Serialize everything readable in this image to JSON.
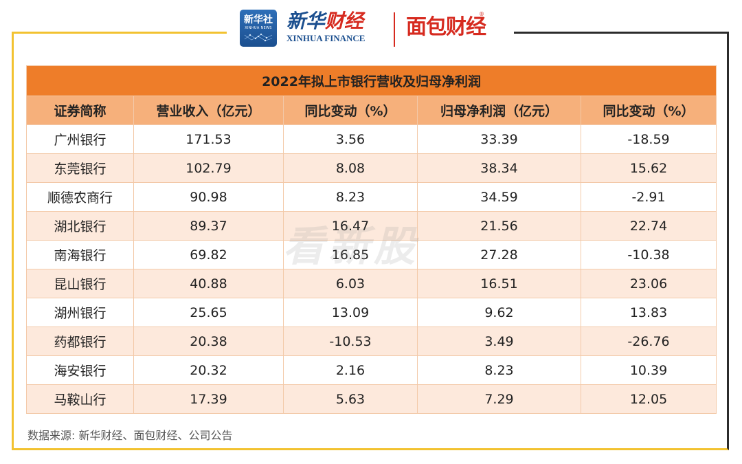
{
  "header": {
    "xinhua_badge_cn": "新华社",
    "xinhua_badge_en": "XINHUA NEWS",
    "xinhua_finance_cn_part1": "新华",
    "xinhua_finance_cn_part2": "财经",
    "xinhua_finance_en": "XINHUA FINANCE",
    "mianbao_logo": "面包财经",
    "registered_mark": "®"
  },
  "colors": {
    "title_bar": "#ee7d29",
    "header_row": "#f6b07b",
    "even_row": "#fde9dc",
    "frame_gold": "#f2c230",
    "frame_dark": "#2b2b2b",
    "brand_red": "#d62a1f",
    "brand_blue": "#1b4f8f"
  },
  "watermark": "看新股",
  "chart_data": {
    "type": "table",
    "title": "2022年拟上市银行营收及归母净利润",
    "columns": [
      "证券简称",
      "营业收入（亿元）",
      "同比变动（%）",
      "归母净利润（亿元）",
      "同比变动（%）"
    ],
    "rows": [
      [
        "广州银行",
        "171.53",
        "3.56",
        "33.39",
        "-18.59"
      ],
      [
        "东莞银行",
        "102.79",
        "8.08",
        "38.34",
        "15.62"
      ],
      [
        "顺德农商行",
        "90.98",
        "8.23",
        "34.59",
        "-2.91"
      ],
      [
        "湖北银行",
        "89.37",
        "16.47",
        "21.56",
        "22.74"
      ],
      [
        "南海银行",
        "69.82",
        "16.85",
        "27.28",
        "-10.38"
      ],
      [
        "昆山银行",
        "40.88",
        "6.03",
        "16.51",
        "23.06"
      ],
      [
        "湖州银行",
        "25.65",
        "13.09",
        "9.62",
        "13.83"
      ],
      [
        "药都银行",
        "20.38",
        "-10.53",
        "3.49",
        "-26.76"
      ],
      [
        "海安银行",
        "20.32",
        "2.16",
        "8.23",
        "10.39"
      ],
      [
        "马鞍山行",
        "17.39",
        "5.63",
        "7.29",
        "12.05"
      ]
    ]
  },
  "source": "数据来源: 新华财经、面包财经、公司公告"
}
